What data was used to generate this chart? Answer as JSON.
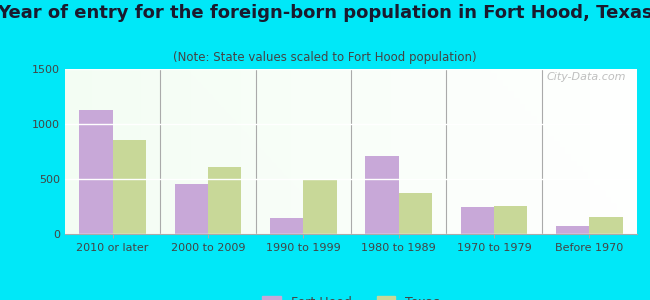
{
  "title": "Year of entry for the foreign-born population in Fort Hood, Texas",
  "subtitle": "(Note: State values scaled to Fort Hood population)",
  "categories": [
    "2010 or later",
    "2000 to 2009",
    "1990 to 1999",
    "1980 to 1989",
    "1970 to 1979",
    "Before 1970"
  ],
  "fort_hood_values": [
    1130,
    455,
    150,
    710,
    250,
    75
  ],
  "texas_values": [
    855,
    610,
    490,
    375,
    255,
    155
  ],
  "fort_hood_color": "#c8a8d8",
  "texas_color": "#c8d898",
  "background_outer": "#00e8f8",
  "ylim": [
    0,
    1500
  ],
  "yticks": [
    0,
    500,
    1000,
    1500
  ],
  "bar_width": 0.35,
  "title_fontsize": 13,
  "subtitle_fontsize": 8.5,
  "tick_fontsize": 8,
  "legend_fontsize": 9
}
